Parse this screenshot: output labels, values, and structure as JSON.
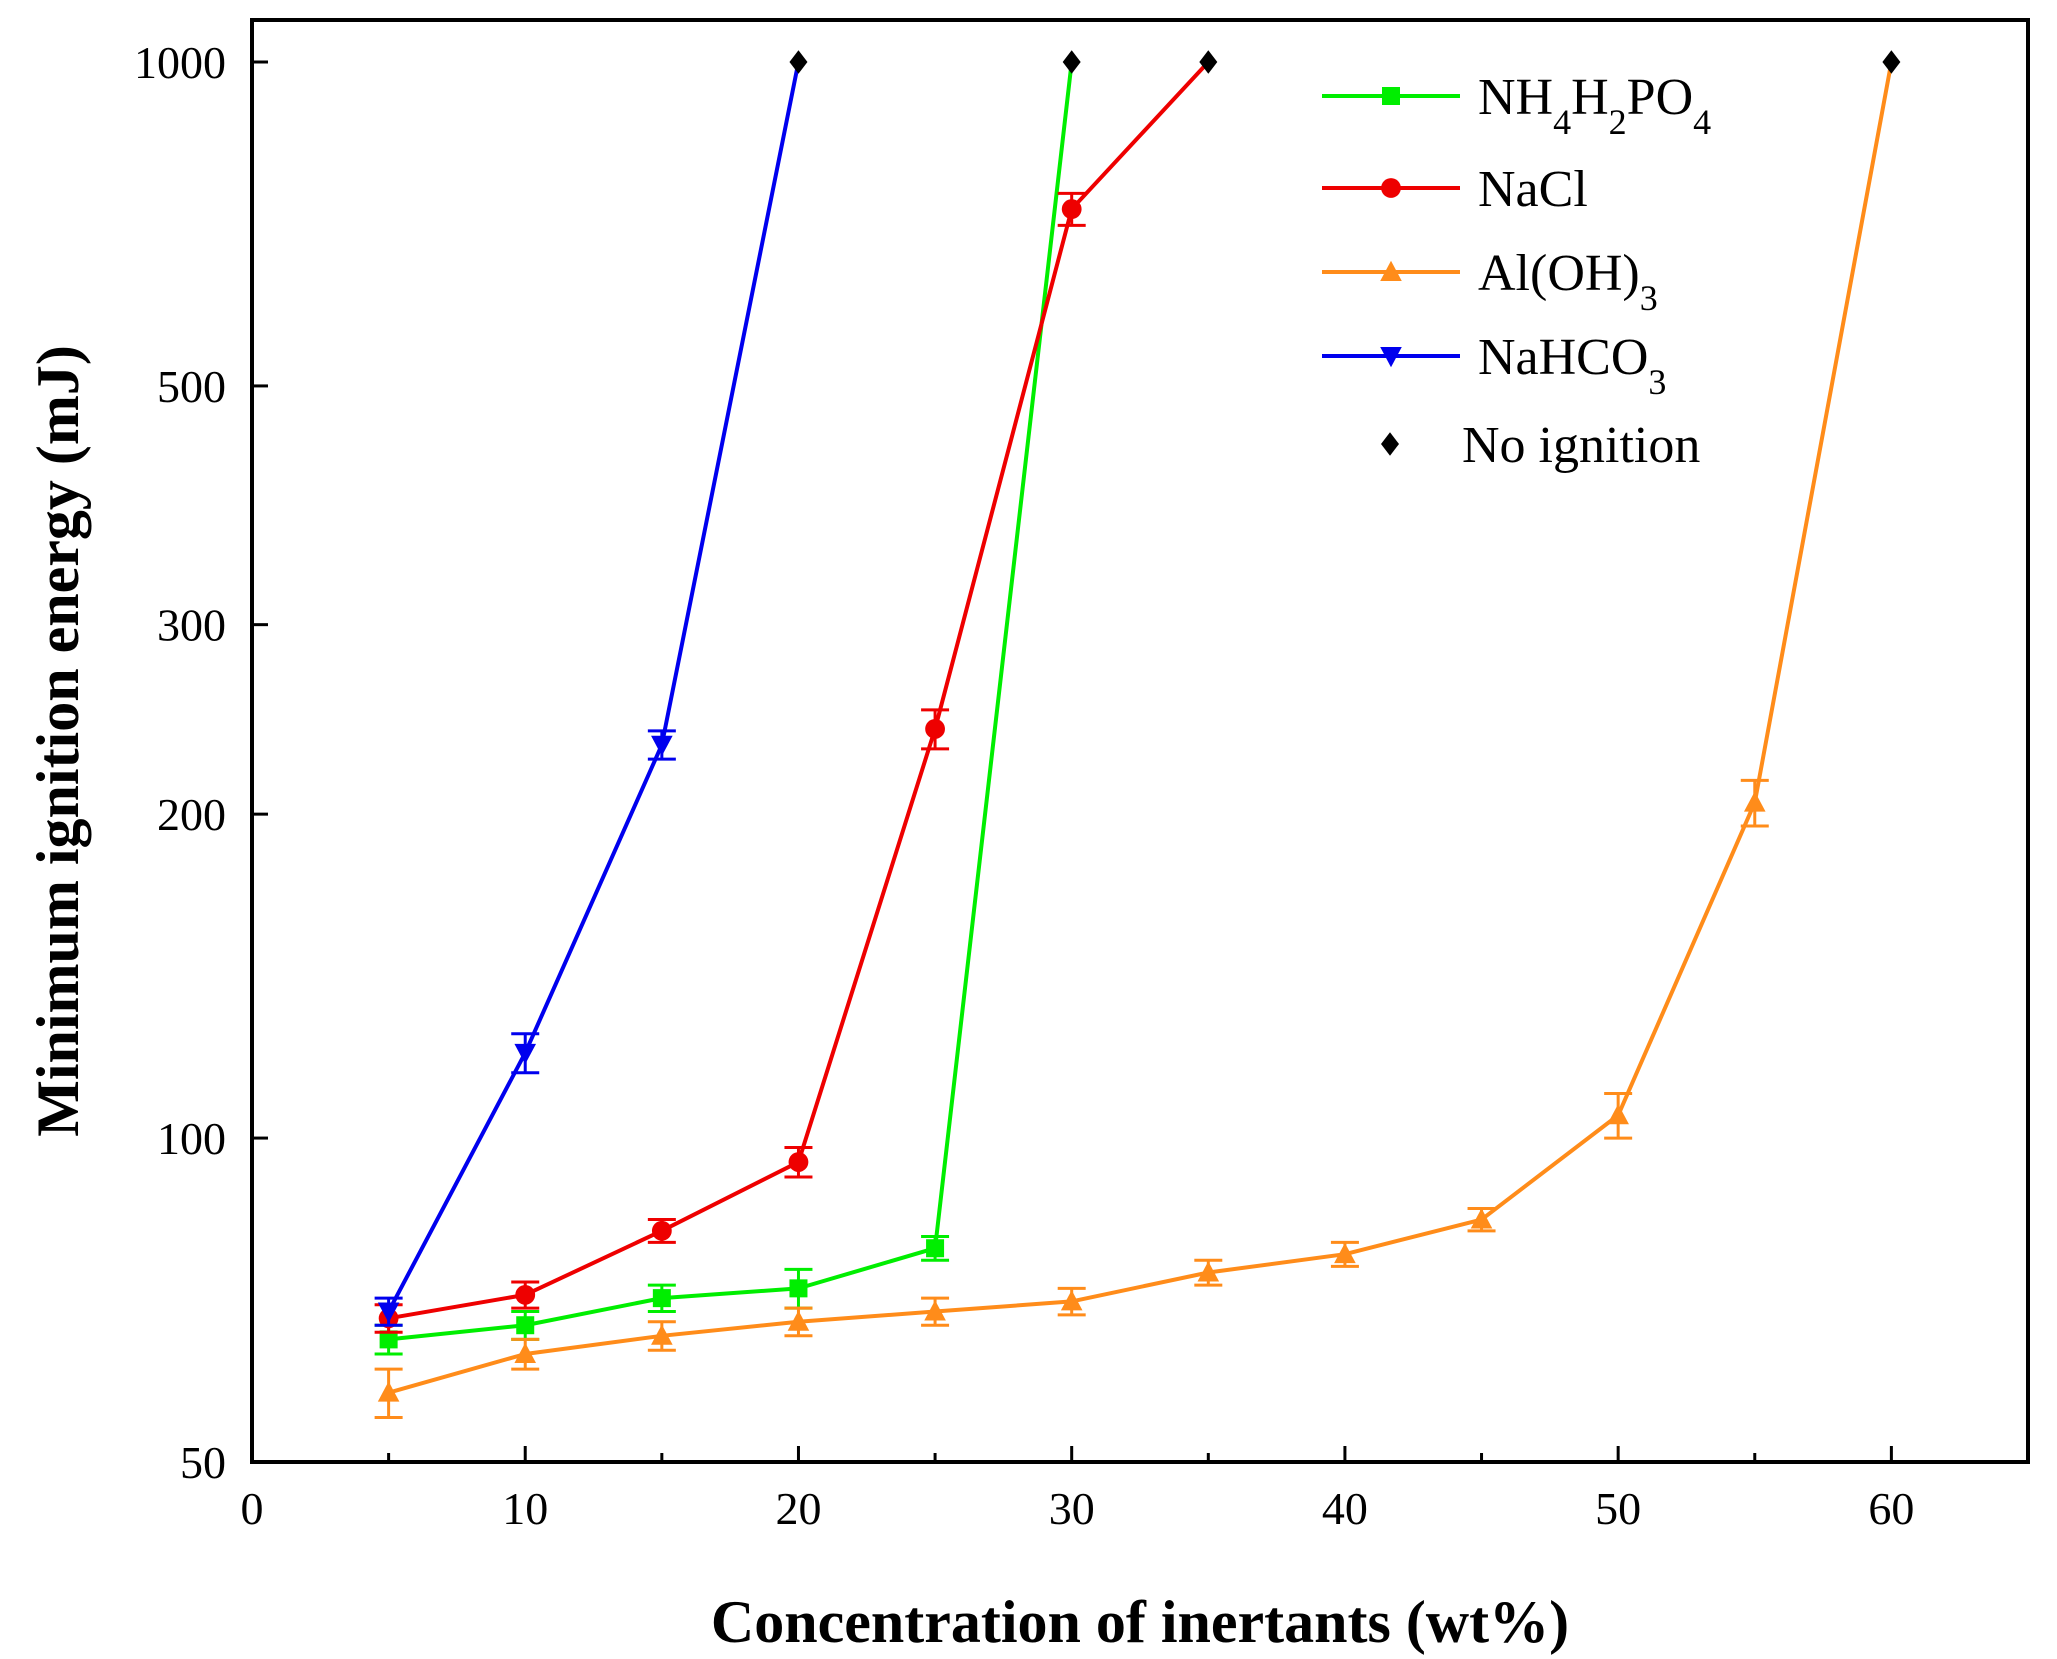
{
  "chart_data": {
    "type": "line",
    "xlabel": "Concentration of inertants (wt%)",
    "ylabel": "Minimum ignition energy (mJ)",
    "xlim": [
      0,
      65
    ],
    "ylim": [
      50,
      1000
    ],
    "yscale": "log",
    "x_ticks": [
      0,
      10,
      20,
      30,
      40,
      50,
      60
    ],
    "y_ticks": [
      50,
      100,
      200,
      300,
      500,
      1000
    ],
    "x_tick_labels": [
      "0",
      "10",
      "20",
      "30",
      "40",
      "50",
      "60"
    ],
    "y_tick_labels": [
      "50",
      "100",
      "200",
      "300",
      "500",
      "1000"
    ],
    "legend_position": "top-right",
    "series": [
      {
        "name": "NH4H2PO4",
        "label_parts": [
          {
            "t": "NH"
          },
          {
            "t": "4",
            "sub": true
          },
          {
            "t": "H"
          },
          {
            "t": "2",
            "sub": true
          },
          {
            "t": "PO"
          },
          {
            "t": "4",
            "sub": true
          }
        ],
        "color": "#00ee00",
        "marker": "square",
        "x": [
          5,
          10,
          15,
          20,
          25,
          30
        ],
        "y": [
          65,
          67,
          71,
          72.5,
          79,
          1000
        ],
        "err": [
          2,
          2,
          2,
          3,
          2,
          0
        ],
        "no_ignition_last": true
      },
      {
        "name": "NaCl",
        "label_parts": [
          {
            "t": "NaCl"
          }
        ],
        "color": "#ee0000",
        "marker": "circle",
        "x": [
          5,
          10,
          15,
          20,
          25,
          30,
          35
        ],
        "y": [
          68,
          71.5,
          82,
          95,
          240,
          730,
          1000
        ],
        "err": [
          2,
          2,
          2,
          3,
          10,
          25,
          0
        ],
        "no_ignition_last": true
      },
      {
        "name": "Al(OH)3",
        "label_parts": [
          {
            "t": "Al(OH)"
          },
          {
            "t": "3",
            "sub": true
          }
        ],
        "color": "#ff8c1a",
        "marker": "triangle-up",
        "x": [
          5,
          10,
          15,
          20,
          25,
          30,
          35,
          40,
          45,
          50,
          55,
          60
        ],
        "y": [
          58,
          63,
          65.5,
          67.5,
          69,
          70.5,
          75,
          78,
          84,
          105,
          205,
          1000
        ],
        "err": [
          3,
          2,
          2,
          2,
          2,
          2,
          2,
          2,
          2,
          5,
          10,
          0
        ],
        "no_ignition_last": true
      },
      {
        "name": "NaHCO3",
        "label_parts": [
          {
            "t": "NaHCO"
          },
          {
            "t": "3",
            "sub": true
          }
        ],
        "color": "#0000ee",
        "marker": "triangle-down",
        "x": [
          5,
          10,
          15,
          20
        ],
        "y": [
          69,
          120,
          232,
          1000
        ],
        "err": [
          2,
          5,
          7,
          0
        ],
        "no_ignition_last": true
      }
    ],
    "no_ignition": {
      "label": "No ignition",
      "color": "#000000",
      "marker": "diamond",
      "points": [
        [
          20,
          1000
        ],
        [
          30,
          1000
        ],
        [
          35,
          1000
        ],
        [
          60,
          1000
        ]
      ]
    }
  }
}
